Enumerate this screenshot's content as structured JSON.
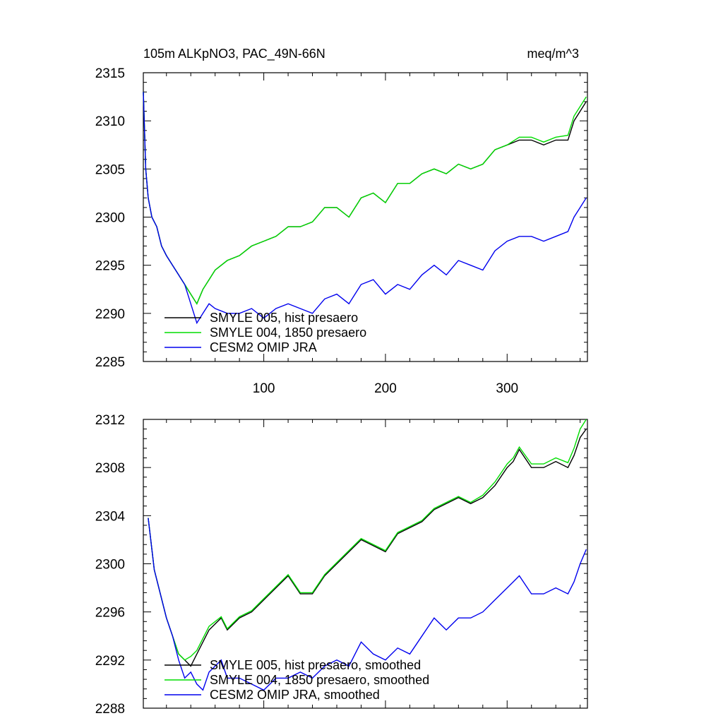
{
  "header": {
    "title_left": "105m ALKpNO3, PAC_49N-66N",
    "title_right": "meq/m^3"
  },
  "chart_data": [
    {
      "type": "line",
      "xlim": [
        1,
        366
      ],
      "ylim": [
        2285,
        2315
      ],
      "x_ticks": [
        100,
        200,
        300
      ],
      "x_tick_labels": [
        "100",
        "200",
        "300"
      ],
      "y_ticks": [
        2285,
        2290,
        2295,
        2300,
        2305,
        2310,
        2315
      ],
      "y_tick_labels": [
        "2285",
        "2290",
        "2295",
        "2300",
        "2305",
        "2310",
        "2315"
      ],
      "legend_position": "bottom-left",
      "series": [
        {
          "name": "SMYLE 005, hist presaero",
          "color": "#000000",
          "x": [
            1,
            3,
            5,
            8,
            12,
            16,
            20,
            25,
            30,
            35,
            40,
            45,
            50,
            55,
            60,
            70,
            80,
            90,
            100,
            110,
            120,
            130,
            140,
            150,
            160,
            170,
            180,
            190,
            200,
            210,
            220,
            230,
            240,
            250,
            260,
            270,
            280,
            290,
            300,
            310,
            320,
            330,
            340,
            350,
            355,
            360,
            365
          ],
          "values": [
            2313,
            2305,
            2302,
            2300,
            2299,
            2297,
            2296,
            2295,
            2294,
            2293,
            2292,
            2291,
            2292.5,
            2293.5,
            2294.5,
            2295.5,
            2296,
            2297,
            2297.5,
            2298,
            2299,
            2299,
            2299.5,
            2301,
            2301,
            2300,
            2302,
            2302.5,
            2301.5,
            2303.5,
            2303.5,
            2304.5,
            2305,
            2304.5,
            2305.5,
            2305,
            2305.5,
            2307,
            2307.5,
            2308,
            2308,
            2307.5,
            2308,
            2308,
            2310,
            2311,
            2312
          ]
        },
        {
          "name": "SMYLE 004, 1850 presaero",
          "color": "#00dd00",
          "x": [
            1,
            3,
            5,
            8,
            12,
            16,
            20,
            25,
            30,
            35,
            40,
            45,
            50,
            55,
            60,
            70,
            80,
            90,
            100,
            110,
            120,
            130,
            140,
            150,
            160,
            170,
            180,
            190,
            200,
            210,
            220,
            230,
            240,
            250,
            260,
            270,
            280,
            290,
            300,
            310,
            320,
            330,
            340,
            350,
            355,
            360,
            365
          ],
          "values": [
            2313,
            2305,
            2302,
            2300,
            2299,
            2297,
            2296,
            2295,
            2294,
            2293,
            2292,
            2291,
            2292.5,
            2293.5,
            2294.5,
            2295.5,
            2296,
            2297,
            2297.5,
            2298,
            2299,
            2299,
            2299.5,
            2301,
            2301,
            2300,
            2302,
            2302.5,
            2301.5,
            2303.5,
            2303.5,
            2304.5,
            2305,
            2304.5,
            2305.5,
            2305,
            2305.5,
            2307,
            2307.5,
            2308.3,
            2308.3,
            2307.8,
            2308.3,
            2308.5,
            2310.5,
            2311.5,
            2312.5
          ]
        },
        {
          "name": "CESM2 OMIP JRA",
          "color": "#0000ee",
          "x": [
            1,
            3,
            5,
            8,
            12,
            16,
            20,
            25,
            30,
            35,
            40,
            45,
            50,
            55,
            60,
            70,
            80,
            90,
            100,
            110,
            120,
            130,
            140,
            150,
            160,
            170,
            180,
            190,
            200,
            210,
            220,
            230,
            240,
            250,
            260,
            270,
            280,
            290,
            300,
            310,
            320,
            330,
            340,
            350,
            355,
            360,
            365
          ],
          "values": [
            2313,
            2305,
            2302,
            2300,
            2299,
            2297,
            2296,
            2295,
            2294,
            2293,
            2291,
            2289,
            2290,
            2291,
            2290.5,
            2290,
            2290,
            2290.5,
            2289.5,
            2290.5,
            2291,
            2290.5,
            2290,
            2291.5,
            2292,
            2291,
            2293,
            2293.5,
            2292,
            2293,
            2292.5,
            2294,
            2295,
            2294,
            2295.5,
            2295,
            2294.5,
            2296.5,
            2297.5,
            2298,
            2298,
            2297.5,
            2298,
            2298.5,
            2300,
            2301,
            2302
          ]
        }
      ]
    },
    {
      "type": "line",
      "xlim": [
        1,
        366
      ],
      "ylim": [
        2288,
        2312
      ],
      "x_ticks": [
        100,
        200,
        300
      ],
      "x_tick_labels": [],
      "y_ticks": [
        2288,
        2292,
        2296,
        2300,
        2304,
        2308,
        2312
      ],
      "y_tick_labels": [
        "2288",
        "2292",
        "2296",
        "2300",
        "2304",
        "2308",
        "2312"
      ],
      "legend_position": "bottom-left",
      "series": [
        {
          "name": "SMYLE 005, hist presaero, smoothed",
          "color": "#000000",
          "x": [
            5,
            10,
            15,
            20,
            25,
            30,
            35,
            40,
            45,
            50,
            55,
            60,
            65,
            70,
            80,
            90,
            100,
            110,
            120,
            130,
            140,
            150,
            160,
            170,
            180,
            190,
            200,
            210,
            220,
            230,
            240,
            250,
            260,
            270,
            280,
            290,
            300,
            305,
            310,
            320,
            330,
            340,
            350,
            355,
            360,
            365
          ],
          "values": [
            2303.8,
            2299.5,
            2297.5,
            2295.5,
            2294,
            2292.5,
            2292,
            2291.5,
            2292.5,
            2293.5,
            2294.5,
            2295,
            2295.5,
            2294.5,
            2295.5,
            2296,
            2297,
            2298,
            2299,
            2297.5,
            2297.5,
            2299,
            2300,
            2301,
            2302,
            2301.5,
            2301,
            2302.5,
            2303,
            2303.5,
            2304.5,
            2305,
            2305.5,
            2305,
            2305.5,
            2306.5,
            2308,
            2308.5,
            2309.5,
            2308,
            2308,
            2308.5,
            2308,
            2309,
            2310.5,
            2311.2
          ]
        },
        {
          "name": "SMYLE 004, 1850 presaero, smoothed",
          "color": "#00dd00",
          "x": [
            5,
            10,
            15,
            20,
            25,
            30,
            35,
            40,
            45,
            50,
            55,
            60,
            65,
            70,
            80,
            90,
            100,
            110,
            120,
            130,
            140,
            150,
            160,
            170,
            180,
            190,
            200,
            210,
            220,
            230,
            240,
            250,
            260,
            270,
            280,
            290,
            300,
            305,
            310,
            320,
            330,
            340,
            350,
            355,
            360,
            365
          ],
          "values": [
            2303.8,
            2299.5,
            2297.5,
            2295.5,
            2294,
            2292.5,
            2292,
            2292.3,
            2292.8,
            2293.8,
            2294.8,
            2295.2,
            2295.6,
            2294.6,
            2295.6,
            2296.1,
            2297.1,
            2298.1,
            2299.1,
            2297.6,
            2297.6,
            2299.1,
            2300.1,
            2301.1,
            2302.1,
            2301.6,
            2301.1,
            2302.6,
            2303.1,
            2303.6,
            2304.6,
            2305.1,
            2305.6,
            2305.1,
            2305.7,
            2306.8,
            2308.3,
            2308.8,
            2309.7,
            2308.3,
            2308.3,
            2308.8,
            2308.4,
            2309.6,
            2311.2,
            2312
          ]
        },
        {
          "name": "CESM2 OMIP JRA, smoothed",
          "color": "#0000ee",
          "x": [
            5,
            10,
            15,
            20,
            25,
            30,
            35,
            40,
            45,
            50,
            55,
            60,
            65,
            70,
            80,
            90,
            100,
            110,
            120,
            130,
            140,
            150,
            160,
            170,
            180,
            190,
            200,
            210,
            220,
            230,
            240,
            250,
            260,
            270,
            280,
            290,
            300,
            305,
            310,
            320,
            330,
            340,
            350,
            355,
            360,
            365
          ],
          "values": [
            2303.8,
            2299.5,
            2297.5,
            2295.5,
            2294,
            2292,
            2290.5,
            2291,
            2290,
            2289.5,
            2291,
            2291.5,
            2292,
            2290.5,
            2290.5,
            2290,
            2289.5,
            2290.5,
            2290.5,
            2291,
            2290.5,
            2291.5,
            2292,
            2291.5,
            2293.5,
            2292.5,
            2292,
            2293,
            2292.5,
            2294,
            2295.5,
            2294.5,
            2295.5,
            2295.5,
            2296,
            2297,
            2298,
            2298.5,
            2299,
            2297.5,
            2297.5,
            2298,
            2297.5,
            2298.5,
            2300,
            2301.2
          ]
        }
      ]
    }
  ]
}
